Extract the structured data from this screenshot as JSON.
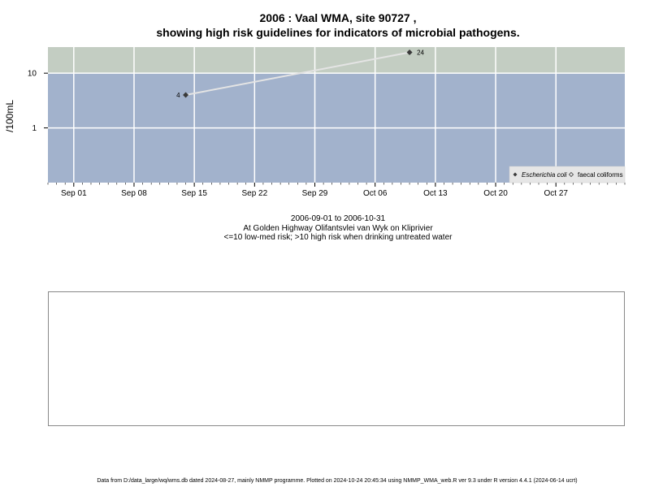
{
  "title_line1": "2006 : Vaal WMA, site 90727 ,",
  "title_line2": "showing high risk guidelines for indicators of microbial pathogens.",
  "caption": {
    "date_range": "2006-09-01 to 2006-10-31",
    "location": "At Golden Highway Olifantsvlei van Wyk on Kliprivier",
    "risk_note": "<=10 low-med risk; >10 high risk when drinking untreated water"
  },
  "footer": "Data from D:/data_large/wq/wms.db dated 2024-08-27, mainly NMMP programme. Plotted on 2024-10-24 20:45:34 using NMMP_WMA_web.R ver 9.3 under R version 4.4.1 (2024-06-14 ucrt)",
  "colors": {
    "low_risk_band": "#a2b2cc",
    "high_risk_band": "#c3cdc2",
    "grid": "#ffffff",
    "series_line": "#e4e4e4",
    "marker": "#3a3a3a"
  },
  "chart_data": {
    "type": "line",
    "x_axis": {
      "type": "date",
      "range": [
        "2006-08-29",
        "2006-11-04"
      ],
      "ticks": [
        {
          "date": "2006-09-01",
          "label": "Sep 01"
        },
        {
          "date": "2006-09-08",
          "label": "Sep 08"
        },
        {
          "date": "2006-09-15",
          "label": "Sep 15"
        },
        {
          "date": "2006-09-22",
          "label": "Sep 22"
        },
        {
          "date": "2006-09-29",
          "label": "Sep 29"
        },
        {
          "date": "2006-10-06",
          "label": "Oct 06"
        },
        {
          "date": "2006-10-13",
          "label": "Oct 13"
        },
        {
          "date": "2006-10-20",
          "label": "Oct 20"
        },
        {
          "date": "2006-10-27",
          "label": "Oct 27"
        }
      ]
    },
    "y_axis": {
      "scale": "log",
      "label": "/100mL",
      "range": [
        0.1,
        30
      ],
      "ticks": [
        {
          "value": 1,
          "label": "1"
        },
        {
          "value": 10,
          "label": "10"
        }
      ]
    },
    "risk_threshold": 10,
    "grid": true,
    "legend": {
      "position": "bottom-right",
      "entries": [
        {
          "label": "Escherichia coli",
          "marker": "filled-diamond",
          "italic": true
        },
        {
          "label": "faecal coliforms",
          "marker": "open-diamond",
          "italic": false
        }
      ]
    },
    "series": [
      {
        "name": "Escherichia coli",
        "points": [
          {
            "date": "2006-09-14",
            "value": 4,
            "label": "4"
          },
          {
            "date": "2006-10-10",
            "value": 24,
            "label": "24"
          }
        ]
      }
    ]
  }
}
